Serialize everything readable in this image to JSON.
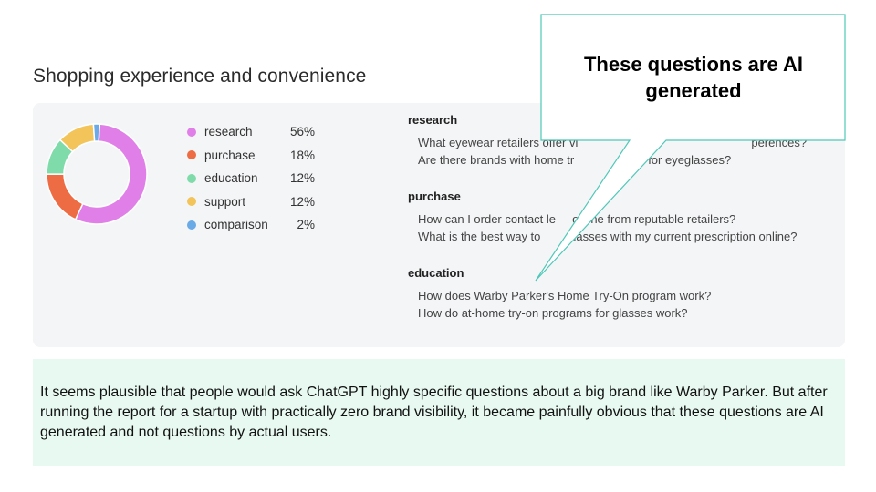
{
  "title": "Shopping experience and convenience",
  "donut": [
    {
      "label": "research",
      "pct": 56,
      "color": "#e17fe8"
    },
    {
      "label": "purchase",
      "pct": 18,
      "color": "#ee6c44"
    },
    {
      "label": "education",
      "pct": 12,
      "color": "#7fdcaa"
    },
    {
      "label": "support",
      "pct": 12,
      "color": "#f2c45a"
    },
    {
      "label": "comparison",
      "pct": 2,
      "color": "#6aaae6"
    }
  ],
  "legend": [
    {
      "label": "research",
      "value": "56%"
    },
    {
      "label": "purchase",
      "value": "18%"
    },
    {
      "label": "education",
      "value": "12%"
    },
    {
      "label": "support",
      "value": "12%"
    },
    {
      "label": "comparison",
      "value": "2%"
    }
  ],
  "groups": [
    {
      "heading": "research",
      "questions": [
        "What eyewear retailers offer vi",
        "Are there brands with home tr"
      ],
      "tails": [
        "perences?",
        "ms for eyeglasses?"
      ]
    },
    {
      "heading": "purchase",
      "questions": [
        "How can I order contact le     online from reputable retailers?",
        "What is the best way to        glasses with my current prescription online?"
      ]
    },
    {
      "heading": "education",
      "questions": [
        "How does Warby Parker's Home Try-On program work?",
        "How do at-home try-on programs for glasses work?"
      ]
    }
  ],
  "callout": {
    "line1": "These questions are AI",
    "line2": "generated"
  },
  "note": "It seems plausible that people would ask ChatGPT highly specific questions about a big brand like Warby Parker. But after running the report for a startup with practically zero brand visibility, it became painfully obvious that these questions are AI generated and not questions by actual users."
}
